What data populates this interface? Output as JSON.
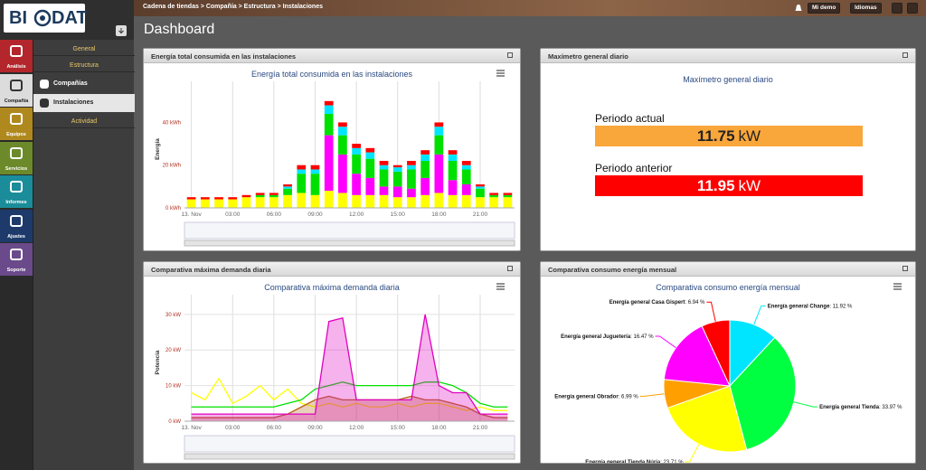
{
  "header": {
    "logo_left": "BI",
    "logo_right": "DAT",
    "breadcrumb": "Cadena de tiendas > Compañía > Estructura > Instalaciones",
    "buttons": [
      "Mi demo",
      "Idiomas"
    ]
  },
  "nav": [
    "Análisis",
    "Compañía",
    "Equipos",
    "Servicios",
    "Informes",
    "Ajustes",
    "Soporte"
  ],
  "subnav": [
    "General",
    "Estructura",
    "Compañías",
    "Instalaciones",
    "Actividad"
  ],
  "page_title": "Dashboard",
  "panels": [
    "Energía total consumida en las instalaciones",
    "Maxímetro general diario",
    "Comparativa máxima demanda diaria",
    "Comparativa consumo energía mensual"
  ],
  "maximeter": {
    "title": "Maxímetro general diario",
    "rows": [
      {
        "label": "Periodo actual",
        "value": 11.75,
        "unit": "kW",
        "color": "#f9a63a",
        "text_color": "#222222"
      },
      {
        "label": "Periodo anterior",
        "value": 11.95,
        "unit": "kW",
        "color": "#ff0000",
        "text_color": "#ffffff"
      }
    ]
  },
  "chart_data": [
    {
      "type": "bar",
      "stacked": true,
      "title": "Energía total consumida en las instalaciones",
      "y_label": "Energía",
      "grid": "x",
      "categories": [
        "13. Nov",
        null,
        null,
        "03:00",
        null,
        null,
        "06:00",
        null,
        null,
        "09:00",
        null,
        null,
        "12:00",
        null,
        null,
        "15:00",
        null,
        null,
        "18:00",
        null,
        null,
        "21:00",
        null,
        null
      ],
      "ylim": [
        0,
        55
      ],
      "yticks": [
        {
          "value": 0,
          "label": "0 kWh"
        },
        {
          "value": 20,
          "label": "20 kWh"
        },
        {
          "value": 40,
          "label": "40 kWh"
        }
      ],
      "series": [
        {
          "color": "#ffff00",
          "values": [
            4,
            4,
            4,
            4,
            5,
            5,
            5,
            6,
            7,
            6,
            8,
            7,
            6,
            6,
            6,
            5,
            5,
            6,
            7,
            6,
            6,
            5,
            5,
            5
          ]
        },
        {
          "color": "#ff00ff",
          "values": [
            0,
            0,
            0,
            0,
            0,
            0,
            0,
            0,
            0,
            0,
            26,
            18,
            10,
            8,
            4,
            5,
            4,
            8,
            18,
            7,
            5,
            0,
            0,
            0
          ]
        },
        {
          "color": "#00e000",
          "values": [
            0,
            0,
            0,
            0,
            0,
            1,
            1,
            3,
            9,
            10,
            10,
            9,
            9,
            9,
            8,
            7,
            9,
            8,
            9,
            9,
            7,
            4,
            1,
            1
          ]
        },
        {
          "color": "#00e5ff",
          "values": [
            0,
            0,
            0,
            0,
            0,
            0,
            0,
            1,
            2,
            2,
            4,
            4,
            3,
            3,
            2,
            2,
            2,
            3,
            4,
            3,
            2,
            1,
            0,
            0
          ]
        },
        {
          "color": "#ff0000",
          "values": [
            1,
            1,
            1,
            1,
            1,
            1,
            1,
            1,
            2,
            2,
            2,
            2,
            2,
            2,
            2,
            1,
            2,
            2,
            2,
            2,
            2,
            1,
            1,
            1
          ]
        }
      ]
    },
    {
      "type": "line",
      "title": "Comparativa máxima demanda diaria",
      "y_label": "Potencia",
      "grid": "both",
      "categories": [
        "13. Nov",
        null,
        null,
        "03:00",
        null,
        null,
        "06:00",
        null,
        null,
        "09:00",
        null,
        null,
        "12:00",
        null,
        null,
        "15:00",
        null,
        null,
        "18:00",
        null,
        null,
        "21:00",
        null,
        null
      ],
      "ylim": [
        0,
        33
      ],
      "yticks": [
        {
          "value": 0,
          "label": "0 kW"
        },
        {
          "value": 10,
          "label": "10 kW"
        },
        {
          "value": 20,
          "label": "20 kW"
        },
        {
          "value": 30,
          "label": "30 kW"
        }
      ],
      "series": [
        {
          "color": "#ffff00",
          "values": [
            8,
            6,
            12,
            5,
            7,
            10,
            6,
            9,
            5,
            4,
            5,
            4,
            5,
            4,
            4,
            5,
            4,
            5,
            5,
            4,
            3,
            4,
            3,
            3
          ]
        },
        {
          "color": "#b5651d",
          "area": true,
          "values": [
            1,
            1,
            1,
            1,
            1,
            1,
            1,
            2,
            4,
            6,
            7,
            6,
            6,
            6,
            6,
            6,
            7,
            6,
            6,
            5,
            4,
            2,
            1,
            1
          ]
        },
        {
          "color": "#00e000",
          "values": [
            4,
            4,
            4,
            4,
            4,
            4,
            4,
            5,
            6,
            9,
            10,
            11,
            10,
            10,
            10,
            10,
            10,
            11,
            11,
            10,
            8,
            5,
            4,
            4
          ]
        },
        {
          "color": "#e000c0",
          "area": true,
          "values": [
            2,
            2,
            2,
            2,
            2,
            2,
            2,
            2,
            2,
            2,
            28,
            29,
            6,
            6,
            6,
            6,
            6,
            30,
            10,
            8,
            8,
            2,
            2,
            2
          ]
        }
      ]
    },
    {
      "type": "pie",
      "title": "Comparativa consumo energía mensual",
      "categories": [
        "Energía general Change",
        "Energía general Tienda",
        "Energía general Tienda Núria",
        "Energía general Obrador",
        "Energía general Juguetería",
        "Energía general Casa Gispert"
      ],
      "values": [
        11.92,
        33.97,
        23.71,
        6.99,
        16.47,
        6.94
      ],
      "value_labels": [
        ": 11.92 %",
        ": 33.97 %",
        ": 23.71 %",
        ": 6.99 %",
        ": 16.47 %",
        ": 6.94 %"
      ],
      "colors": [
        "#00e5ff",
        "#00ff40",
        "#ffff00",
        "#ffa000",
        "#ff00ff",
        "#ff0000"
      ]
    }
  ]
}
